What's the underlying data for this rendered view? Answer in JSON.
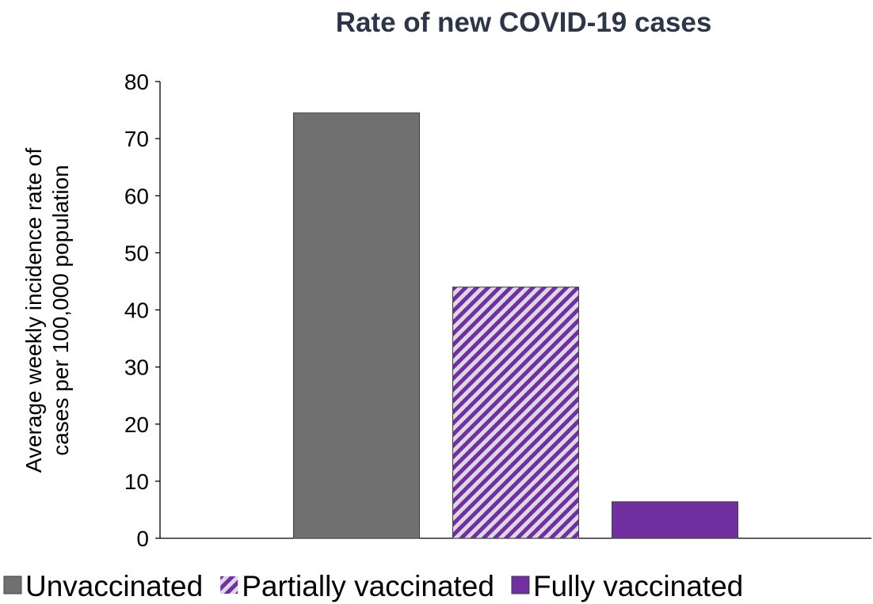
{
  "chart_data": {
    "type": "bar",
    "title": "Rate of new COVID-19 cases",
    "y_label": [
      "Average weekly incidence rate of",
      "cases per 100,000 population"
    ],
    "categories": [
      null
    ],
    "series": [
      {
        "name": "Unvaccinated",
        "color": "#707070",
        "values": [
          74.5
        ]
      },
      {
        "name": "Partially vaccinated",
        "color": "#7030a0",
        "pattern": "diagonal-stripes",
        "values": [
          44
        ]
      },
      {
        "name": "Fully vaccinated",
        "color": "#7030a0",
        "values": [
          6.4
        ]
      }
    ],
    "ylim": [
      0,
      80
    ],
    "yticks": [
      0,
      10,
      20,
      30,
      40,
      50,
      60,
      70,
      80
    ],
    "grid": false,
    "legend": "bottom"
  }
}
